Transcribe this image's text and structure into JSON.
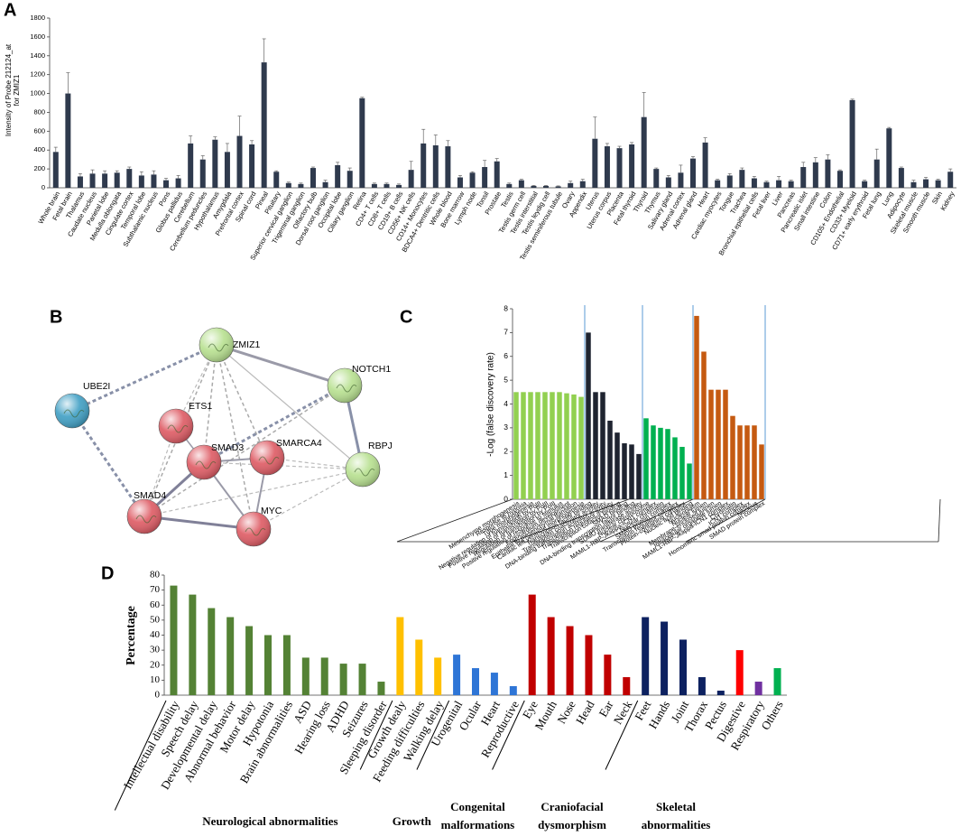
{
  "chart_data": [
    {
      "panel": "A",
      "type": "bar",
      "ylabel": [
        "Intensity of Probe 212124_at",
        "for ZMIZ1"
      ],
      "categories": [
        "Whole brain",
        "Fetal brain",
        "Thalamus",
        "Caudate nucleus",
        "Parietal lobe",
        "Medulla oblongata",
        "Cingulate cortex",
        "Temporal lobe",
        "Subthalamic nucleus",
        "Pons",
        "Globus pallidus",
        "Cerebellum",
        "Cerebellum peduncles",
        "Hypothalamus",
        "Amygdala",
        "Prefrontal cortex",
        "Spinal cord",
        "Pineal",
        "Pituitary",
        "Superior cervical ganglion",
        "Trigeminal ganglion",
        "Olfactory bulb",
        "Dorsal root ganglion",
        "Occipital lobe",
        "Ciliary ganglion",
        "Retina",
        "CD4+ T cells",
        "CD8+ T cells",
        "CD19+ B cells",
        "CD56+ NK cells",
        "CD14+ Monocytes",
        "BDCA4+ Dentritic cells",
        "Whole blood",
        "Bone marrow",
        "Lymph node",
        "Tonsil",
        "Prostate",
        "Testis",
        "Testis germ cell",
        "Testis interstitial",
        "Testis leydig cell",
        "Testis seminiferous tubule",
        "Ovary",
        "Appendix",
        "Uterus",
        "Uterus corpus",
        "Placenta",
        "Fetal thyroid",
        "Thyroid",
        "Thymus",
        "Salivary gland",
        "Adrenal cortex",
        "Adrenal gland",
        "Heart",
        "Cardiac myocytes",
        "Tongue",
        "Trachea",
        "Bronchial epithelial cells",
        "Fetal liver",
        "Liver",
        "Pancreas",
        "Pancreatic islet",
        "Small intestine",
        "Colon",
        "CD105+ Endothelial",
        "CD33+ Myeloid",
        "CD71+ early erythroid",
        "Fetal lung",
        "Lung",
        "Adipocyte",
        "Skeletal muscle",
        "Smooth muscle",
        "Skin",
        "Kidney"
      ],
      "values": [
        380,
        1000,
        120,
        150,
        150,
        160,
        200,
        130,
        140,
        80,
        100,
        470,
        300,
        510,
        380,
        550,
        460,
        1330,
        170,
        50,
        40,
        210,
        60,
        240,
        180,
        950,
        40,
        40,
        30,
        190,
        470,
        450,
        440,
        110,
        160,
        220,
        280,
        40,
        80,
        20,
        20,
        15,
        50,
        70,
        520,
        440,
        420,
        460,
        750,
        200,
        110,
        160,
        310,
        480,
        80,
        130,
        190,
        100,
        60,
        80,
        70,
        220,
        270,
        300,
        180,
        930,
        70,
        300,
        630,
        210,
        60,
        90,
        80,
        170
      ],
      "errors": [
        50,
        220,
        30,
        40,
        30,
        20,
        20,
        40,
        40,
        20,
        30,
        80,
        40,
        30,
        90,
        210,
        40,
        250,
        10,
        10,
        10,
        10,
        20,
        30,
        30,
        10,
        10,
        10,
        10,
        90,
        150,
        110,
        60,
        20,
        10,
        70,
        30,
        10,
        10,
        5,
        5,
        5,
        20,
        20,
        230,
        30,
        20,
        20,
        260,
        10,
        20,
        80,
        20,
        50,
        10,
        20,
        20,
        20,
        10,
        40,
        10,
        50,
        50,
        50,
        10,
        10,
        10,
        110,
        10,
        10,
        20,
        20,
        10,
        30
      ],
      "color": "#2f3a4d",
      "ylim": [
        0,
        1800
      ],
      "yticks": [
        0,
        200,
        400,
        600,
        800,
        1000,
        1200,
        1400,
        1600,
        1800
      ]
    },
    {
      "panel": "C",
      "type": "bar",
      "ylabel": "-Log (false discovery rate)",
      "groups": [
        {
          "color": "#92d050",
          "categories": [
            "Mesenchyme morphogenesis",
            "Response to hypoxia",
            "Tube morphogenesis",
            "Negative regulation of transcription by PolII",
            "Positive regulation of transcription by PolII",
            "Regulation of transcription by PolII",
            "Positive regulation of response to stimulus",
            "Endocardium development",
            "Epithelial to mesenchymal transition",
            "Cardiac left ventricle morphogenesis"
          ],
          "values": [
            4.5,
            4.5,
            4.5,
            4.5,
            4.5,
            4.5,
            4.5,
            4.45,
            4.4,
            4.3
          ]
        },
        {
          "color": "#1f2430",
          "categories": [
            "Transcription factor binding",
            "Transcription coactivator activity",
            "DNA-binding transcription activator activity",
            "Transcription regulator activity",
            "Transcription cofactor binding",
            "SMAD binding",
            "DNA-binding transcription factor binding",
            "SUMO transferase activity"
          ],
          "values": [
            7.0,
            4.5,
            4.5,
            3.3,
            2.8,
            2.35,
            2.3,
            1.9
          ]
        },
        {
          "color": "#00b050",
          "categories": [
            "Nuclear chromosome",
            "MAML1-RBP-Jkappa-ICN1 complex",
            "Nuclear chromatin",
            "SMAD protein complex",
            "Transcription regulator complex",
            "Protein-containing complex",
            "Nucleic acid binding"
          ],
          "values": [
            3.4,
            3.1,
            3.0,
            2.95,
            2.6,
            2.2,
            1.5
          ]
        },
        {
          "color": "#c55a11",
          "categories": [
            "Nucleoplasm",
            "Nuclear lumen",
            "Membrane-enclosed lumen",
            "Intracellular organelle lumen",
            "MAML1-RBP-Jkappa-ICN1 complex",
            "Chromatin",
            "ICN1 complex",
            "Homomeric smad protein complex",
            "Nucleus",
            "SMAD protein complex"
          ],
          "values": [
            7.7,
            6.2,
            4.6,
            4.6,
            4.6,
            3.5,
            3.1,
            3.1,
            3.1,
            2.3
          ]
        }
      ],
      "ylim": [
        0,
        8
      ],
      "yticks": [
        0,
        1,
        2,
        3,
        4,
        5,
        6,
        7,
        8
      ]
    },
    {
      "panel": "D",
      "type": "bar",
      "ylabel": "Percentage",
      "groups": [
        {
          "name": [
            "Neurological abnormalities"
          ],
          "color": "#548235",
          "categories": [
            "Intellectual disability",
            "Speech delay",
            "Developmental delay",
            "Abnormal behavior",
            "Motor delay",
            "Hypotonia",
            "Brain abnormalities",
            "ASD",
            "Hearing loss",
            "ADHD",
            "Seizures",
            "Sleeping disorder"
          ],
          "values": [
            73,
            67,
            58,
            52,
            46,
            40,
            40,
            25,
            25,
            21,
            21,
            9
          ]
        },
        {
          "name": [
            "Growth"
          ],
          "color": "#ffc000",
          "categories": [
            "Growth dealy",
            "Feeding difficulties",
            "Walking delay"
          ],
          "values": [
            52,
            37,
            25
          ]
        },
        {
          "name": [
            "Congenital",
            "malformations"
          ],
          "color": "#2e75d6",
          "categories": [
            "Urogenital",
            "Ocular",
            "Heart",
            "Reproductive"
          ],
          "values": [
            27,
            18,
            15,
            6
          ]
        },
        {
          "name": [
            "Craniofacial",
            "dysmorphism"
          ],
          "color": "#c00000",
          "categories": [
            "Eye",
            "Mouth",
            "Nose",
            "Head",
            "Ear",
            "Neck"
          ],
          "values": [
            67,
            52,
            46,
            40,
            27,
            12
          ]
        },
        {
          "name": [
            "Skeletal",
            "abnormalities"
          ],
          "color": "#0d2160",
          "categories": [
            "Feet",
            "Hands",
            "Joint",
            "Thorax",
            "Pectus"
          ],
          "values": [
            52,
            49,
            37,
            12,
            3
          ]
        },
        {
          "color": "#ff0000",
          "categories": [
            "Digestive"
          ],
          "values": [
            30
          ]
        },
        {
          "color": "#7030a0",
          "categories": [
            "Respiratory"
          ],
          "values": [
            9
          ]
        },
        {
          "color": "#00b050",
          "categories": [
            "Others"
          ],
          "values": [
            18
          ]
        }
      ],
      "ylim": [
        0,
        80
      ],
      "yticks": [
        0,
        10,
        20,
        30,
        40,
        50,
        60,
        70,
        80
      ]
    }
  ],
  "network": {
    "panel": "B",
    "nodes": [
      {
        "label": "ZMIZ1",
        "color": "#b7e08f"
      },
      {
        "label": "NOTCH1",
        "color": "#b7e08f"
      },
      {
        "label": "UBE2I",
        "color": "#3f9fc4"
      },
      {
        "label": "ETS1",
        "color": "#de5a63"
      },
      {
        "label": "SMAD3",
        "color": "#de5a63"
      },
      {
        "label": "SMARCA4",
        "color": "#de5a63"
      },
      {
        "label": "RBPJ",
        "color": "#b7e08f"
      },
      {
        "label": "SMAD4",
        "color": "#de5a63"
      },
      {
        "label": "MYC",
        "color": "#de5a63"
      }
    ]
  }
}
